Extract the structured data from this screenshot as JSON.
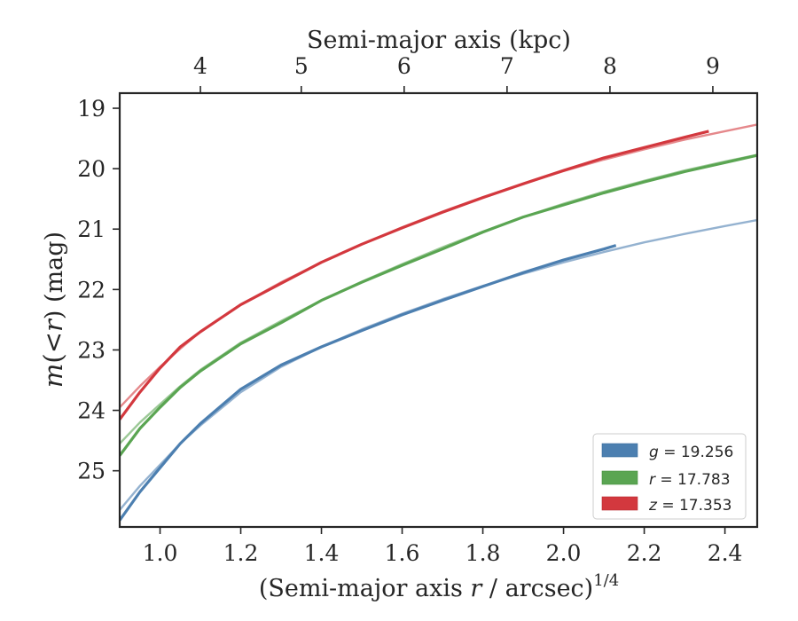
{
  "chart_data": {
    "type": "line",
    "xlabel_main": "(Semi-major axis ",
    "xlabel_var": "r",
    "xlabel_rest": " / arcsec)",
    "xlabel_sup": "1/4",
    "xlabel_top": "Semi-major axis (kpc)",
    "ylabel_var1": "m",
    "ylabel_mid": "(<",
    "ylabel_var2": "r",
    "ylabel_end": ") (mag)",
    "xlim": [
      0.9,
      2.48
    ],
    "ylim": [
      25.93,
      18.75
    ],
    "y_inverted": true,
    "xticks": [
      1.0,
      1.2,
      1.4,
      1.6,
      1.8,
      2.0,
      2.2,
      2.4
    ],
    "xtick_labels": [
      "1.0",
      "1.2",
      "1.4",
      "1.6",
      "1.8",
      "2.0",
      "2.2",
      "2.4"
    ],
    "yticks": [
      19,
      20,
      21,
      22,
      23,
      24,
      25
    ],
    "ytick_labels": [
      "19",
      "20",
      "21",
      "22",
      "23",
      "24",
      "25"
    ],
    "top_xticks": [
      4,
      5,
      6,
      7,
      8,
      9
    ],
    "top_xtick_labels": [
      "4",
      "5",
      "6",
      "7",
      "8",
      "9"
    ],
    "top_xtick_positions": [
      1.1,
      1.35,
      1.605,
      1.86,
      2.115,
      2.37
    ],
    "grid": false,
    "legend_position": "bottom-right",
    "legend": [
      {
        "var": "g",
        "text": " = 19.256",
        "color": "#4c7fb0"
      },
      {
        "var": "r",
        "text": " = 17.783",
        "color": "#5aa552"
      },
      {
        "var": "z",
        "text": " = 17.353",
        "color": "#d3383e"
      }
    ],
    "series": [
      {
        "band": "g",
        "color": "#4c7fb0",
        "data_x": [
          0.9,
          0.95,
          1.0,
          1.05,
          1.1,
          1.2,
          1.3,
          1.4,
          1.5,
          1.6,
          1.7,
          1.8,
          1.9,
          2.0,
          2.1,
          2.13
        ],
        "data_y": [
          25.82,
          25.35,
          24.95,
          24.55,
          24.22,
          23.65,
          23.25,
          22.95,
          22.68,
          22.42,
          22.18,
          21.95,
          21.72,
          21.51,
          21.33,
          21.27
        ],
        "model_x": [
          0.9,
          0.95,
          1.0,
          1.05,
          1.1,
          1.2,
          1.3,
          1.4,
          1.5,
          1.6,
          1.7,
          1.8,
          1.9,
          2.0,
          2.1,
          2.2,
          2.3,
          2.4,
          2.48
        ],
        "model_y": [
          25.65,
          25.25,
          24.9,
          24.55,
          24.25,
          23.7,
          23.28,
          22.95,
          22.66,
          22.4,
          22.16,
          21.94,
          21.74,
          21.55,
          21.38,
          21.22,
          21.08,
          20.95,
          20.85
        ]
      },
      {
        "band": "r",
        "color": "#5aa552",
        "data_x": [
          0.9,
          0.95,
          1.0,
          1.05,
          1.1,
          1.2,
          1.3,
          1.4,
          1.5,
          1.6,
          1.7,
          1.8,
          1.9,
          2.0,
          2.1,
          2.2,
          2.3,
          2.4,
          2.48
        ],
        "data_y": [
          24.75,
          24.3,
          23.95,
          23.62,
          23.35,
          22.9,
          22.55,
          22.18,
          21.88,
          21.6,
          21.33,
          21.05,
          20.8,
          20.6,
          20.4,
          20.22,
          20.05,
          19.9,
          19.78
        ],
        "model_x": [
          0.9,
          0.95,
          1.0,
          1.05,
          1.1,
          1.2,
          1.3,
          1.4,
          1.5,
          1.6,
          1.7,
          1.8,
          1.9,
          2.0,
          2.1,
          2.2,
          2.3,
          2.4,
          2.48
        ],
        "model_y": [
          24.55,
          24.2,
          23.9,
          23.6,
          23.33,
          22.88,
          22.52,
          22.18,
          21.87,
          21.58,
          21.3,
          21.04,
          20.8,
          20.58,
          20.38,
          20.2,
          20.03,
          19.88,
          19.77
        ]
      },
      {
        "band": "z",
        "color": "#d3383e",
        "data_x": [
          0.9,
          0.95,
          1.0,
          1.05,
          1.1,
          1.2,
          1.3,
          1.4,
          1.5,
          1.6,
          1.7,
          1.8,
          1.9,
          2.0,
          2.1,
          2.2,
          2.3,
          2.36
        ],
        "data_y": [
          24.15,
          23.7,
          23.3,
          22.95,
          22.7,
          22.25,
          21.9,
          21.55,
          21.25,
          20.98,
          20.72,
          20.48,
          20.25,
          20.03,
          19.82,
          19.65,
          19.48,
          19.38
        ],
        "model_x": [
          0.9,
          0.95,
          1.0,
          1.05,
          1.1,
          1.2,
          1.3,
          1.4,
          1.5,
          1.6,
          1.7,
          1.8,
          1.9,
          2.0,
          2.1,
          2.2,
          2.3,
          2.4,
          2.48
        ],
        "model_y": [
          23.95,
          23.6,
          23.28,
          22.98,
          22.7,
          22.25,
          21.88,
          21.55,
          21.25,
          20.97,
          20.71,
          20.47,
          20.25,
          20.04,
          19.85,
          19.68,
          19.52,
          19.38,
          19.27
        ]
      }
    ]
  }
}
